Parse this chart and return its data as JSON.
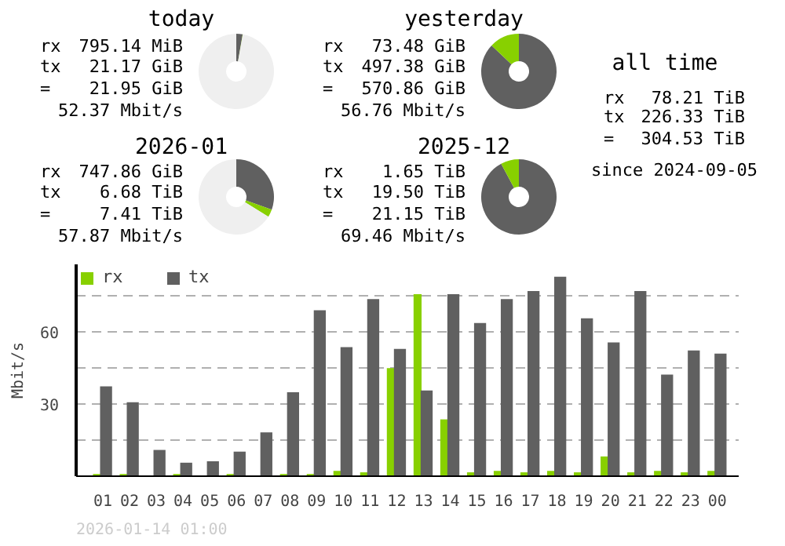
{
  "chart_data": [
    {
      "type": "donut",
      "title": "today",
      "categories": [
        null,
        null,
        null
      ],
      "values": [
        2.7,
        0.1,
        97.2
      ],
      "colors": [
        "#606060",
        "#88d000",
        "#efefef"
      ],
      "annotations": [
        "rx 795.14 MiB",
        "tx 21.17 GiB",
        "= 21.95 GiB",
        "52.37 Mbit/s"
      ]
    },
    {
      "type": "donut",
      "title": "yesterday",
      "categories": [
        null,
        null
      ],
      "values": [
        87.1,
        12.9
      ],
      "colors": [
        "#606060",
        "#88d000"
      ],
      "annotations": [
        "rx 73.48 GiB",
        "tx 497.38 GiB",
        "= 570.86 GiB",
        "56.76 Mbit/s"
      ]
    },
    {
      "type": "donut",
      "title": "2026-01",
      "categories": [
        null,
        null,
        null
      ],
      "values": [
        30.5,
        3.3,
        66.2
      ],
      "colors": [
        "#606060",
        "#88d000",
        "#efefef"
      ],
      "annotations": [
        "rx 747.86 GiB",
        "tx 6.68 TiB",
        "= 7.41 TiB",
        "57.87 Mbit/s"
      ]
    },
    {
      "type": "donut",
      "title": "2025-12",
      "categories": [
        null,
        null
      ],
      "values": [
        92.2,
        7.8
      ],
      "colors": [
        "#606060",
        "#88d000"
      ],
      "annotations": [
        "rx 1.65 TiB",
        "tx 19.50 TiB",
        "= 21.15 TiB",
        "69.46 Mbit/s"
      ]
    },
    {
      "type": "other",
      "title": "all time",
      "annotations": [
        "rx 78.21 TiB",
        "tx 226.33 TiB",
        "= 304.53 TiB",
        "since 2024-09-05"
      ]
    },
    {
      "type": "bar",
      "ylabel": "Mbit/s",
      "categories": [
        "01",
        "02",
        "03",
        "04",
        "05",
        "06",
        "07",
        "08",
        "09",
        "10",
        "11",
        "12",
        "13",
        "14",
        "15",
        "16",
        "17",
        "18",
        "19",
        "20",
        "21",
        "22",
        "23",
        "00"
      ],
      "series": [
        {
          "name": "rx",
          "color": "#88d000",
          "values": [
            0.9,
            0.9,
            0,
            0.9,
            0,
            0.9,
            0,
            0.9,
            0.9,
            2.2,
            1.6,
            44.9,
            75.6,
            23.6,
            1.6,
            2.2,
            1.6,
            2.2,
            1.6,
            8.2,
            1.6,
            2.2,
            1.6,
            2.2
          ]
        },
        {
          "name": "tx",
          "color": "#606060",
          "values": [
            37.3,
            30.7,
            10.9,
            5.6,
            6.2,
            10.2,
            18.2,
            34.9,
            68.9,
            53.6,
            73.6,
            52.9,
            35.6,
            75.6,
            63.6,
            73.6,
            76.9,
            82.9,
            65.6,
            55.6,
            76.9,
            42.2,
            52.2,
            50.9
          ]
        }
      ],
      "ylim": [
        0,
        88
      ],
      "yticks": [
        {
          "value": 15,
          "label": null
        },
        30,
        {
          "value": 45,
          "label": null
        },
        60,
        {
          "value": 75,
          "label": null
        }
      ],
      "grid": "y",
      "legend": "top left",
      "annotations": [
        "2026-01-14 01:00"
      ]
    }
  ]
}
